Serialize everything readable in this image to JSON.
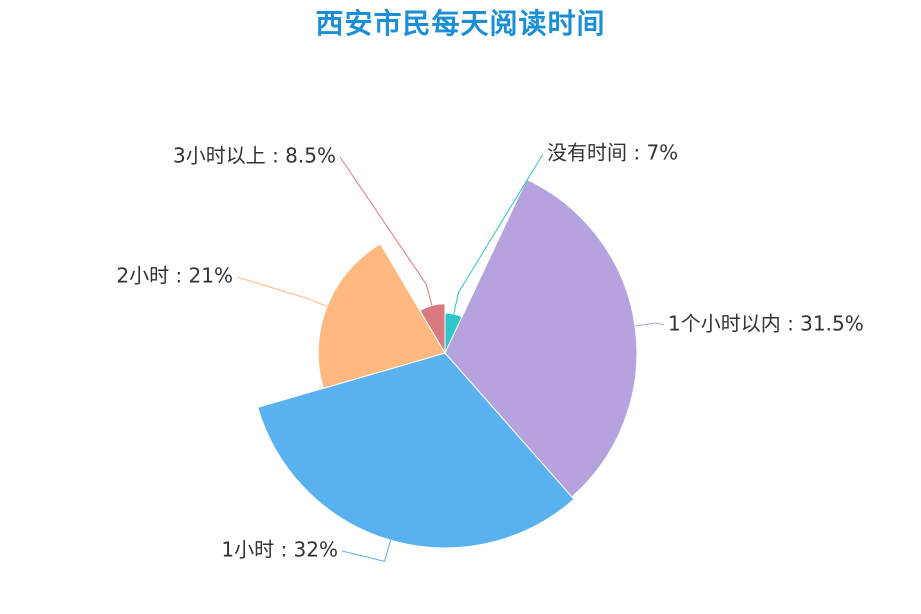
{
  "chart_data": {
    "type": "pie",
    "variant": "rose-radius",
    "title": "西安市民每天阅读时间",
    "slices": [
      {
        "name": "没有时间",
        "value": 7,
        "label": "没有时间 : 7%",
        "color": "#2ec7c9"
      },
      {
        "name": "1个小时以内",
        "value": 31.5,
        "label": "1个小时以内 : 31.5%",
        "color": "#b6a2de"
      },
      {
        "name": "1小时",
        "value": 32,
        "label": "1小时 : 32%",
        "color": "#5ab1ef"
      },
      {
        "name": "2小时",
        "value": 21,
        "label": "2小时 : 21%",
        "color": "#ffb980"
      },
      {
        "name": "3小时以上",
        "value": 8.5,
        "label": "3小时以上 : 8.5%",
        "color": "#d87a80"
      }
    ]
  }
}
